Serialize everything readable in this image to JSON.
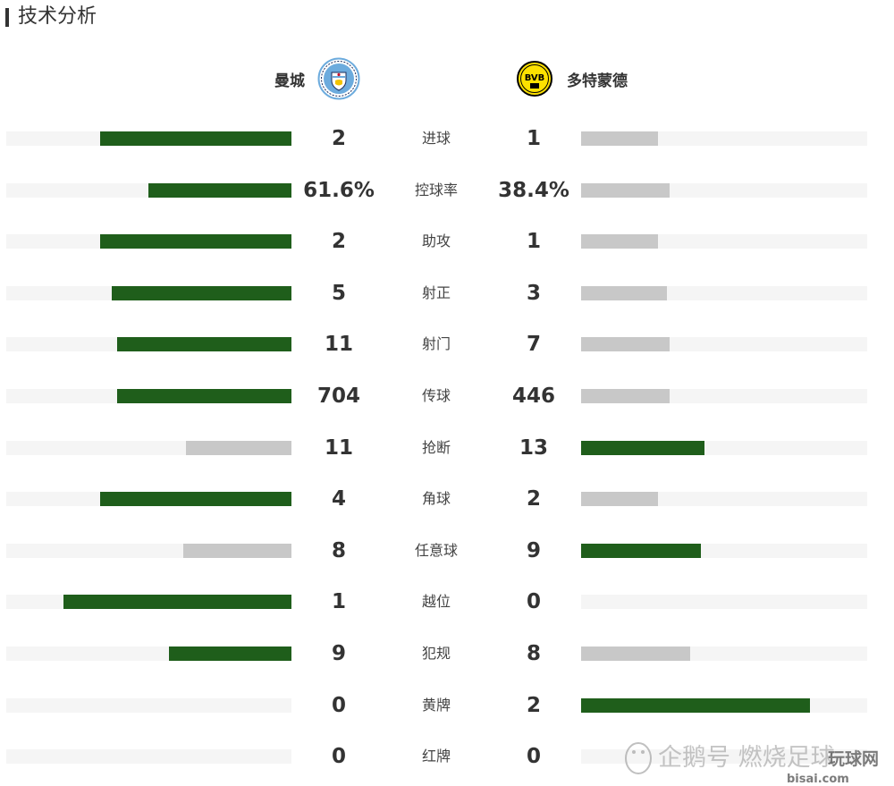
{
  "header": {
    "title": "技术分析"
  },
  "teams": {
    "home": {
      "name": "曼城",
      "crest": "man-city-crest-icon"
    },
    "away": {
      "name": "多特蒙德",
      "crest": "bvb-crest-icon",
      "crest_text": "BVB"
    }
  },
  "colors": {
    "leader": "#1f5e1b",
    "trailer": "#c8c8c8",
    "track": "#f5f5f5"
  },
  "stats": [
    {
      "label": "进球",
      "home": "2",
      "away": "1",
      "home_fill": 0.67,
      "away_fill": 0.27
    },
    {
      "label": "控球率",
      "home": "61.6%",
      "away": "38.4%",
      "home_fill": 0.5,
      "away_fill": 0.31
    },
    {
      "label": "助攻",
      "home": "2",
      "away": "1",
      "home_fill": 0.67,
      "away_fill": 0.27
    },
    {
      "label": "射正",
      "home": "5",
      "away": "3",
      "home_fill": 0.63,
      "away_fill": 0.3
    },
    {
      "label": "射门",
      "home": "11",
      "away": "7",
      "home_fill": 0.61,
      "away_fill": 0.31
    },
    {
      "label": "传球",
      "home": "704",
      "away": "446",
      "home_fill": 0.61,
      "away_fill": 0.31
    },
    {
      "label": "抢断",
      "home": "11",
      "away": "13",
      "home_fill": 0.37,
      "away_fill": 0.43
    },
    {
      "label": "角球",
      "home": "4",
      "away": "2",
      "home_fill": 0.67,
      "away_fill": 0.27
    },
    {
      "label": "任意球",
      "home": "8",
      "away": "9",
      "home_fill": 0.38,
      "away_fill": 0.42
    },
    {
      "label": "越位",
      "home": "1",
      "away": "0",
      "home_fill": 0.8,
      "away_fill": 0
    },
    {
      "label": "犯规",
      "home": "9",
      "away": "8",
      "home_fill": 0.43,
      "away_fill": 0.38
    },
    {
      "label": "黄牌",
      "home": "0",
      "away": "2",
      "home_fill": 0,
      "away_fill": 0.8
    },
    {
      "label": "红牌",
      "home": "0",
      "away": "0",
      "home_fill": 0,
      "away_fill": 0
    }
  ],
  "watermark": {
    "text": "企鹅号 燃烧足球",
    "site": "玩球网",
    "site_url": "bisai.com"
  }
}
